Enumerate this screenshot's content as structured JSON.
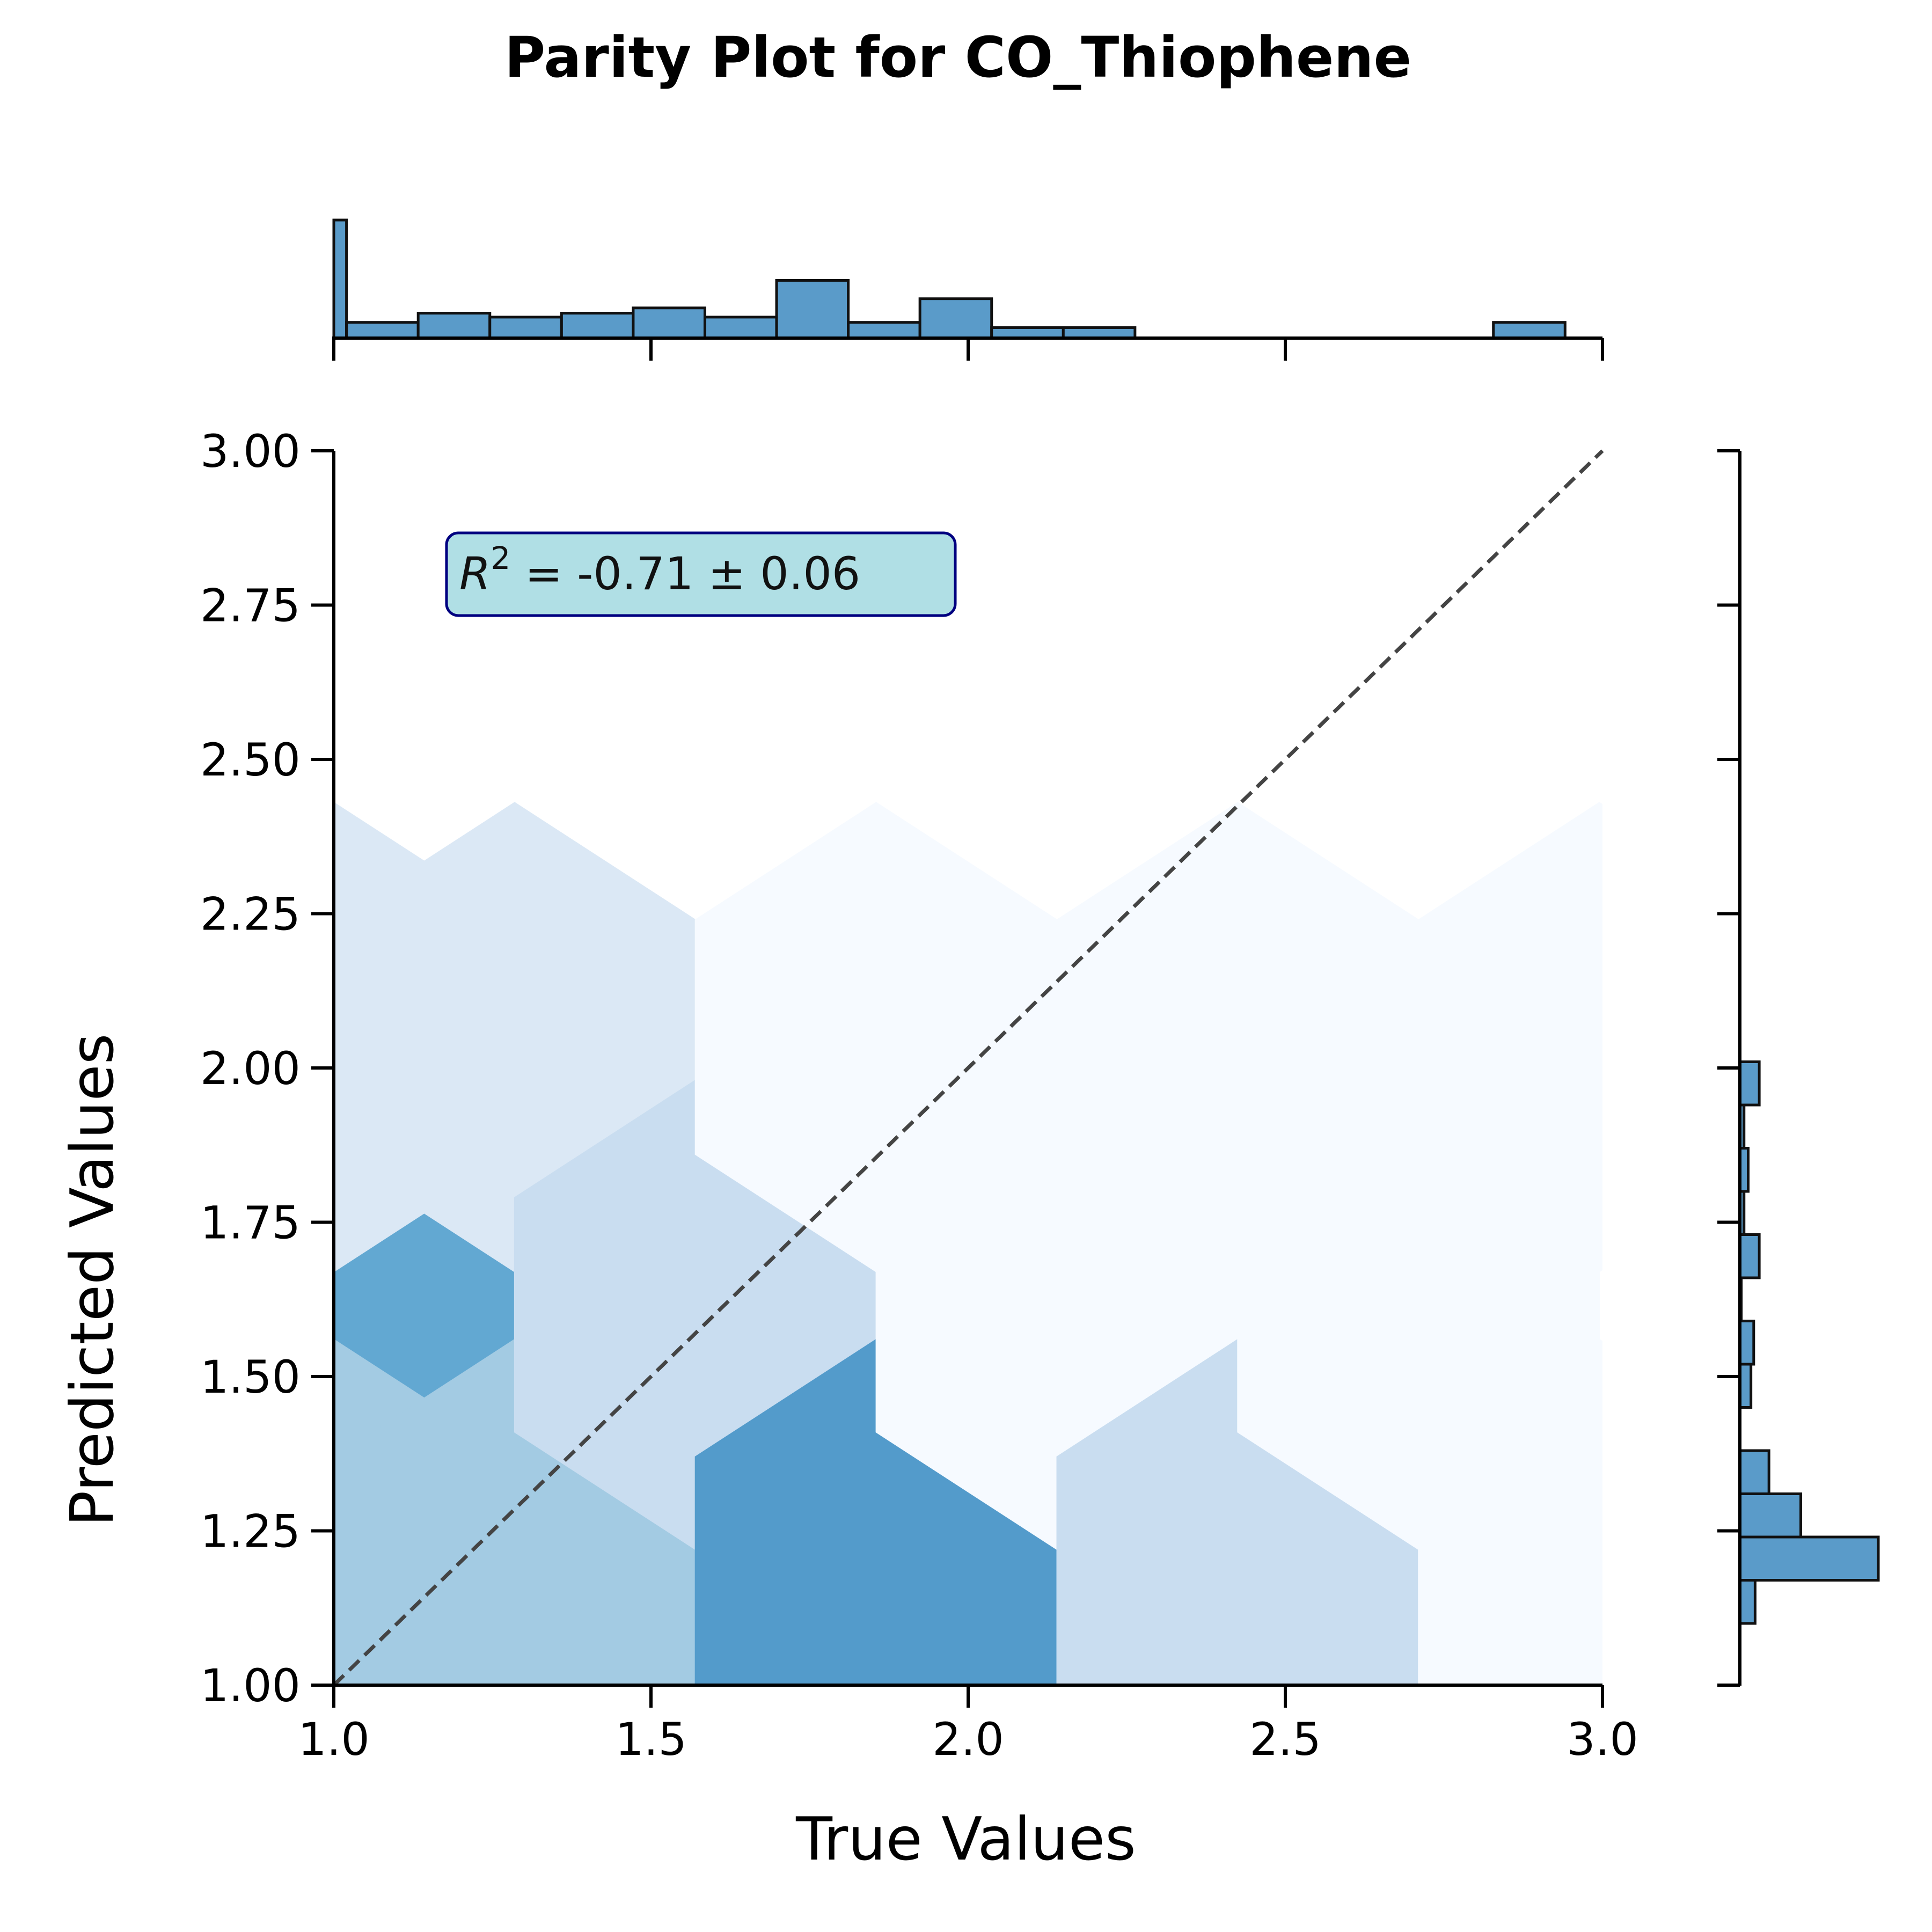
{
  "chart_data": {
    "type": "hexbin",
    "title": "Parity Plot for CO_Thiophene",
    "xlabel": "True Values",
    "ylabel": "Predicted Values",
    "xlim": [
      1.0,
      3.0
    ],
    "ylim": [
      1.0,
      3.0
    ],
    "x_ticks": [
      "1.0",
      "1.5",
      "2.0",
      "2.5",
      "3.0"
    ],
    "y_ticks": [
      "1.00",
      "1.25",
      "1.50",
      "1.75",
      "2.00",
      "2.25",
      "2.50",
      "2.75",
      "3.00"
    ],
    "grid": false,
    "parity_line": {
      "x": [
        1.0,
        3.0
      ],
      "y": [
        1.0,
        3.0
      ],
      "style": "dashed",
      "color": "#444444"
    },
    "annotation": {
      "symbol": "R",
      "superscript": "2",
      "text": " = -0.71 ± 0.06",
      "x": 1.18,
      "y": 2.8
    },
    "hexbins": [
      {
        "x": 1.0,
        "y": 1.6,
        "color": "#62a8d2"
      },
      {
        "x": 1.0,
        "y": 2.05,
        "color": "#dbe8f5"
      },
      {
        "x": 1.0,
        "y": 1.18,
        "color": "#a3cbe3"
      },
      {
        "x": 1.285,
        "y": 1.18,
        "color": "#a3cbe3"
      },
      {
        "x": 1.285,
        "y": 2.05,
        "color": "#dbe8f5"
      },
      {
        "x": 1.57,
        "y": 1.6,
        "color": "#c9ddf0"
      },
      {
        "x": 1.855,
        "y": 1.18,
        "color": "#539bcb"
      },
      {
        "x": 1.855,
        "y": 2.05,
        "color": "#f6faff"
      },
      {
        "x": 2.14,
        "y": 1.6,
        "color": "#f6faff"
      },
      {
        "x": 2.425,
        "y": 1.18,
        "color": "#c9ddf0"
      },
      {
        "x": 2.425,
        "y": 2.05,
        "color": "#f6faff"
      },
      {
        "x": 2.71,
        "y": 1.6,
        "color": "#f6faff"
      },
      {
        "x": 2.995,
        "y": 1.18,
        "color": "#f6faff"
      },
      {
        "x": 2.995,
        "y": 2.05,
        "color": "#f6faff"
      }
    ],
    "marginal_x": {
      "bin_edges": [
        1.0,
        1.02,
        1.133,
        1.246,
        1.359,
        1.472,
        1.585,
        1.698,
        1.811,
        1.924,
        2.037,
        2.15,
        2.263,
        2.376,
        2.489,
        2.602,
        2.715,
        2.828,
        2.941
      ],
      "counts": [
        9,
        1.2,
        1.9,
        1.6,
        1.9,
        2.3,
        1.6,
        4.4,
        1.2,
        3.0,
        0.8,
        0.8,
        0,
        0,
        0,
        0,
        0,
        1.2
      ],
      "max_count": 9
    },
    "marginal_y": {
      "bin_edges": [
        1.1,
        1.17,
        1.24,
        1.31,
        1.38,
        1.45,
        1.52,
        1.59,
        1.66,
        1.73,
        1.8,
        1.87,
        1.94,
        2.01
      ],
      "counts": [
        1.1,
        10,
        4.4,
        2.1,
        0,
        0.8,
        1.0,
        0.1,
        1.4,
        0.3,
        0.6,
        0.3,
        1.4
      ],
      "max_count": 10
    },
    "colors": {
      "bar_fill": "#5a9bc9",
      "bar_edge": "#111111",
      "anno_fill": "#b0dfe5",
      "anno_edge": "#000080"
    }
  }
}
